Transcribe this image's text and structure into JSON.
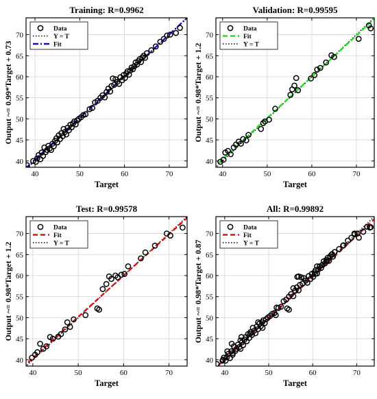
{
  "chart_data": [
    {
      "type": "scatter",
      "title": "Training: R=0.9962",
      "xlabel": "Target",
      "ylabel": "Output ~= 0.99*Target + 0.73",
      "xlim": [
        38,
        74
      ],
      "ylim": [
        38.5,
        74
      ],
      "xticks": [
        40,
        50,
        60,
        70
      ],
      "yticks": [
        40,
        45,
        50,
        55,
        60,
        65,
        70
      ],
      "grid": true,
      "legend_position": "top-left",
      "legend": [
        "Data",
        "Y = T",
        "Fit"
      ],
      "fit": {
        "slope": 0.99,
        "intercept": 0.73,
        "color": "#1010d0",
        "style": "dashdot"
      },
      "identity": {
        "color": "#000000",
        "style": "dotted"
      },
      "points": [
        [
          38.2,
          39.0
        ],
        [
          39.6,
          40.0
        ],
        [
          40.2,
          39.8
        ],
        [
          40.5,
          40.6
        ],
        [
          40.8,
          41.4
        ],
        [
          41.2,
          40.4
        ],
        [
          41.5,
          42.0
        ],
        [
          41.8,
          41.2
        ],
        [
          42.1,
          43.2
        ],
        [
          42.4,
          42.1
        ],
        [
          42.7,
          42.6
        ],
        [
          43.0,
          43.6
        ],
        [
          43.3,
          43.0
        ],
        [
          43.6,
          42.6
        ],
        [
          43.9,
          44.1
        ],
        [
          44.2,
          43.5
        ],
        [
          44.5,
          44.8
        ],
        [
          44.8,
          45.4
        ],
        [
          45.0,
          44.4
        ],
        [
          45.3,
          46.1
        ],
        [
          45.6,
          45.2
        ],
        [
          45.9,
          46.6
        ],
        [
          46.2,
          45.9
        ],
        [
          46.4,
          47.6
        ],
        [
          46.7,
          46.9
        ],
        [
          47.0,
          46.3
        ],
        [
          47.3,
          47.9
        ],
        [
          47.6,
          47.3
        ],
        [
          47.9,
          48.6
        ],
        [
          48.2,
          48.0
        ],
        [
          48.5,
          48.9
        ],
        [
          48.8,
          49.4
        ],
        [
          49.1,
          48.7
        ],
        [
          49.4,
          49.6
        ],
        [
          49.8,
          50.0
        ],
        [
          50.3,
          50.4
        ],
        [
          50.8,
          50.9
        ],
        [
          51.3,
          51.1
        ],
        [
          52.2,
          52.3
        ],
        [
          52.8,
          52.6
        ],
        [
          53.4,
          53.9
        ],
        [
          54.0,
          54.3
        ],
        [
          54.6,
          55.0
        ],
        [
          55.1,
          55.6
        ],
        [
          55.6,
          55.1
        ],
        [
          56.0,
          56.4
        ],
        [
          56.4,
          57.2
        ],
        [
          56.8,
          56.5
        ],
        [
          57.1,
          57.8
        ],
        [
          57.4,
          59.6
        ],
        [
          57.7,
          58.1
        ],
        [
          58.0,
          59.4
        ],
        [
          58.4,
          58.8
        ],
        [
          58.8,
          58.3
        ],
        [
          59.1,
          59.9
        ],
        [
          59.5,
          59.2
        ],
        [
          59.8,
          60.4
        ],
        [
          60.1,
          59.7
        ],
        [
          60.4,
          60.8
        ],
        [
          60.7,
          61.3
        ],
        [
          61.0,
          60.5
        ],
        [
          61.3,
          61.5
        ],
        [
          61.6,
          62.2
        ],
        [
          61.9,
          61.8
        ],
        [
          62.2,
          62.5
        ],
        [
          62.5,
          63.4
        ],
        [
          62.8,
          62.9
        ],
        [
          63.1,
          63.7
        ],
        [
          63.4,
          64.2
        ],
        [
          63.7,
          63.5
        ],
        [
          64.0,
          64.6
        ],
        [
          64.3,
          65.0
        ],
        [
          64.6,
          64.5
        ],
        [
          65.0,
          65.6
        ],
        [
          66.0,
          66.3
        ],
        [
          67.0,
          67.2
        ],
        [
          68.0,
          68.3
        ],
        [
          68.8,
          69.0
        ],
        [
          69.5,
          69.8
        ],
        [
          70.2,
          70.0
        ],
        [
          71.5,
          70.4
        ],
        [
          72.4,
          71.6
        ]
      ]
    },
    {
      "type": "scatter",
      "title": "Validation: R=0.99595",
      "xlabel": "Target",
      "ylabel": "Output ~= 0.98*Target + 1.2",
      "xlim": [
        38.5,
        74
      ],
      "ylim": [
        38.5,
        74
      ],
      "xticks": [
        40,
        50,
        60,
        70
      ],
      "yticks": [
        40,
        45,
        50,
        55,
        60,
        65,
        70
      ],
      "grid": true,
      "legend_position": "top-left",
      "legend": [
        "Data",
        "Fit",
        "Y = T"
      ],
      "fit": {
        "slope": 0.98,
        "intercept": 1.2,
        "color": "#22dd22",
        "style": "dashed"
      },
      "identity": {
        "color": "#000000",
        "style": "dotted"
      },
      "points": [
        [
          39.5,
          39.8
        ],
        [
          40.2,
          40.3
        ],
        [
          40.6,
          42.0
        ],
        [
          41.2,
          42.4
        ],
        [
          41.8,
          41.6
        ],
        [
          42.5,
          43.2
        ],
        [
          43.0,
          43.9
        ],
        [
          43.6,
          44.6
        ],
        [
          44.1,
          44.1
        ],
        [
          44.6,
          45.2
        ],
        [
          45.3,
          44.9
        ],
        [
          45.8,
          46.2
        ],
        [
          48.6,
          47.6
        ],
        [
          49.1,
          49.0
        ],
        [
          49.5,
          49.4
        ],
        [
          50.4,
          49.8
        ],
        [
          51.8,
          52.4
        ],
        [
          55.2,
          55.7
        ],
        [
          55.6,
          57.0
        ],
        [
          56.1,
          57.9
        ],
        [
          56.5,
          59.7
        ],
        [
          56.9,
          56.8
        ],
        [
          59.8,
          59.6
        ],
        [
          60.6,
          60.4
        ],
        [
          61.2,
          61.7
        ],
        [
          61.9,
          62.1
        ],
        [
          63.2,
          63.4
        ],
        [
          64.4,
          65.1
        ],
        [
          65.0,
          64.7
        ],
        [
          70.5,
          69.0
        ],
        [
          72.8,
          72.2
        ],
        [
          73.2,
          71.5
        ]
      ]
    },
    {
      "type": "scatter",
      "title": "Test: R=0.99578",
      "xlabel": "Target",
      "ylabel": "Output ~= 0.98*Target + 1.2",
      "xlim": [
        38.5,
        74
      ],
      "ylim": [
        38.5,
        74
      ],
      "xticks": [
        40,
        50,
        60,
        70
      ],
      "yticks": [
        40,
        45,
        50,
        55,
        60,
        65,
        70
      ],
      "grid": true,
      "legend_position": "top-left",
      "legend": [
        "Data",
        "Fit",
        "Y = T"
      ],
      "fit": {
        "slope": 0.98,
        "intercept": 1.2,
        "color": "#e01010",
        "style": "dashed"
      },
      "identity": {
        "color": "#000000",
        "style": "dotted"
      },
      "points": [
        [
          39.8,
          40.5
        ],
        [
          40.5,
          41.2
        ],
        [
          41.0,
          41.8
        ],
        [
          41.6,
          43.8
        ],
        [
          42.3,
          42.6
        ],
        [
          43.0,
          43.2
        ],
        [
          43.8,
          45.4
        ],
        [
          44.4,
          45.0
        ],
        [
          45.6,
          45.5
        ],
        [
          46.2,
          46.1
        ],
        [
          47.1,
          47.2
        ],
        [
          47.6,
          48.9
        ],
        [
          48.2,
          47.8
        ],
        [
          49.0,
          49.6
        ],
        [
          51.6,
          50.6
        ],
        [
          54.2,
          52.2
        ],
        [
          54.6,
          51.9
        ],
        [
          55.4,
          56.8
        ],
        [
          56.2,
          58.0
        ],
        [
          56.8,
          59.8
        ],
        [
          57.3,
          59.2
        ],
        [
          58.2,
          60.0
        ],
        [
          58.7,
          59.6
        ],
        [
          59.5,
          60.2
        ],
        [
          60.2,
          60.4
        ],
        [
          61.0,
          62.2
        ],
        [
          63.8,
          64.1
        ],
        [
          64.8,
          65.5
        ],
        [
          66.9,
          67.1
        ],
        [
          69.5,
          70.0
        ],
        [
          70.3,
          69.5
        ],
        [
          73.0,
          71.4
        ]
      ]
    },
    {
      "type": "scatter",
      "title": "All: R=0.99892",
      "xlabel": "Target",
      "ylabel": "Output ~= 0.98*Target + 0.87",
      "xlim": [
        38,
        74
      ],
      "ylim": [
        38.5,
        74
      ],
      "xticks": [
        40,
        50,
        60,
        70
      ],
      "yticks": [
        40,
        45,
        50,
        55,
        60,
        65,
        70
      ],
      "grid": true,
      "legend_position": "top-left",
      "legend": [
        "Data",
        "Fit",
        "Y = T"
      ],
      "fit": {
        "slope": 0.98,
        "intercept": 0.87,
        "color": "#e01010",
        "style": "dashed"
      },
      "identity": {
        "color": "#000000",
        "style": "dotted"
      },
      "points": [
        [
          38.2,
          39.0
        ],
        [
          39.6,
          40.0
        ],
        [
          40.2,
          39.8
        ],
        [
          40.5,
          40.6
        ],
        [
          40.8,
          41.4
        ],
        [
          41.2,
          40.4
        ],
        [
          41.5,
          42.0
        ],
        [
          41.8,
          41.2
        ],
        [
          42.1,
          43.2
        ],
        [
          42.4,
          42.1
        ],
        [
          42.7,
          42.6
        ],
        [
          43.0,
          43.6
        ],
        [
          43.3,
          43.0
        ],
        [
          43.6,
          42.6
        ],
        [
          43.9,
          44.1
        ],
        [
          44.2,
          43.5
        ],
        [
          44.5,
          44.8
        ],
        [
          44.8,
          45.4
        ],
        [
          45.0,
          44.4
        ],
        [
          45.3,
          46.1
        ],
        [
          45.6,
          45.2
        ],
        [
          45.9,
          46.6
        ],
        [
          46.2,
          45.9
        ],
        [
          46.4,
          47.6
        ],
        [
          46.7,
          46.9
        ],
        [
          47.0,
          46.3
        ],
        [
          47.3,
          47.9
        ],
        [
          47.6,
          47.3
        ],
        [
          47.9,
          48.6
        ],
        [
          48.2,
          48.0
        ],
        [
          48.5,
          48.9
        ],
        [
          48.8,
          49.4
        ],
        [
          49.1,
          48.7
        ],
        [
          49.4,
          49.6
        ],
        [
          49.8,
          50.0
        ],
        [
          50.3,
          50.4
        ],
        [
          50.8,
          50.9
        ],
        [
          51.3,
          51.1
        ],
        [
          52.2,
          52.3
        ],
        [
          52.8,
          52.6
        ],
        [
          53.4,
          53.9
        ],
        [
          54.0,
          54.3
        ],
        [
          54.6,
          55.0
        ],
        [
          55.1,
          55.6
        ],
        [
          55.6,
          55.1
        ],
        [
          56.0,
          56.4
        ],
        [
          56.4,
          57.2
        ],
        [
          56.8,
          56.5
        ],
        [
          57.1,
          57.8
        ],
        [
          57.4,
          59.6
        ],
        [
          57.7,
          58.1
        ],
        [
          58.0,
          59.4
        ],
        [
          58.4,
          58.8
        ],
        [
          58.8,
          58.3
        ],
        [
          59.1,
          59.9
        ],
        [
          59.5,
          59.2
        ],
        [
          59.8,
          60.4
        ],
        [
          60.1,
          59.7
        ],
        [
          60.4,
          60.8
        ],
        [
          60.7,
          61.3
        ],
        [
          61.0,
          60.5
        ],
        [
          61.3,
          61.5
        ],
        [
          61.6,
          62.2
        ],
        [
          61.9,
          61.8
        ],
        [
          62.2,
          62.5
        ],
        [
          62.5,
          63.4
        ],
        [
          62.8,
          62.9
        ],
        [
          63.1,
          63.7
        ],
        [
          63.4,
          64.2
        ],
        [
          63.7,
          63.5
        ],
        [
          64.0,
          64.6
        ],
        [
          64.3,
          65.0
        ],
        [
          64.6,
          64.5
        ],
        [
          65.0,
          65.6
        ],
        [
          66.0,
          66.3
        ],
        [
          67.0,
          67.2
        ],
        [
          68.0,
          68.3
        ],
        [
          68.8,
          69.0
        ],
        [
          69.5,
          69.8
        ],
        [
          70.2,
          70.0
        ],
        [
          71.5,
          70.4
        ],
        [
          72.4,
          71.6
        ],
        [
          39.5,
          39.8
        ],
        [
          40.6,
          42.0
        ],
        [
          41.8,
          41.6
        ],
        [
          43.6,
          44.6
        ],
        [
          45.8,
          46.2
        ],
        [
          48.6,
          47.6
        ],
        [
          51.8,
          52.4
        ],
        [
          55.6,
          57.0
        ],
        [
          56.5,
          59.7
        ],
        [
          60.6,
          60.4
        ],
        [
          63.2,
          63.4
        ],
        [
          64.4,
          65.1
        ],
        [
          70.5,
          69.0
        ],
        [
          73.2,
          71.5
        ],
        [
          39.8,
          40.5
        ],
        [
          41.6,
          43.8
        ],
        [
          43.8,
          45.4
        ],
        [
          47.6,
          48.9
        ],
        [
          51.6,
          50.6
        ],
        [
          54.2,
          52.2
        ],
        [
          54.6,
          51.9
        ],
        [
          56.8,
          59.8
        ],
        [
          61.0,
          62.2
        ],
        [
          66.9,
          67.1
        ],
        [
          69.5,
          70.0
        ],
        [
          73.0,
          71.4
        ]
      ]
    }
  ]
}
